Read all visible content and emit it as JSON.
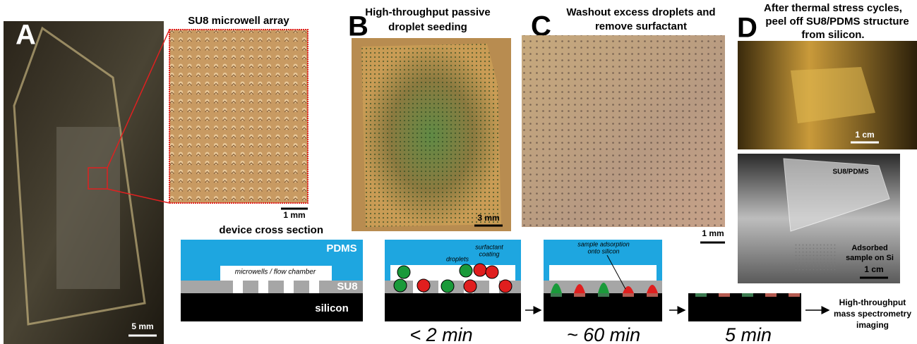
{
  "panels": {
    "A": {
      "letter": "A",
      "scale_bar": "5 mm",
      "inset_title": "SU8 microwell array",
      "inset_scale_bar": "1 mm"
    },
    "B": {
      "letter": "B",
      "title": [
        "High-throughput passive",
        "droplet seeding"
      ],
      "scale_bar": "3 mm",
      "time": "< 2 min"
    },
    "C": {
      "letter": "C",
      "title": [
        "Washout excess droplets and",
        "remove surfactant"
      ],
      "scale_bar": "1 mm",
      "time": "~ 60 min"
    },
    "D": {
      "letter": "D",
      "title": [
        "After thermal stress cycles,",
        "peel off SU8/PDMS structure",
        "from silicon."
      ],
      "scale_bar_top": "1 cm",
      "scale_bar_bottom": "1 cm",
      "label_top": "SU8/PDMS",
      "label_bottom": [
        "Adsorbed",
        "sample on Si"
      ]
    }
  },
  "cross_section": {
    "title": "device cross section",
    "pdms": "PDMS",
    "chamber": "microwells / flow chamber",
    "su8": "SU8",
    "silicon": "silicon",
    "droplets": "droplets",
    "surfactant": [
      "surfactant",
      "coating"
    ],
    "adsorption": [
      "sample adsorption",
      "onto silicon"
    ]
  },
  "final_step": {
    "time": "5 min",
    "output": [
      "High-throughput",
      "mass spectrometry",
      "imaging"
    ]
  }
}
